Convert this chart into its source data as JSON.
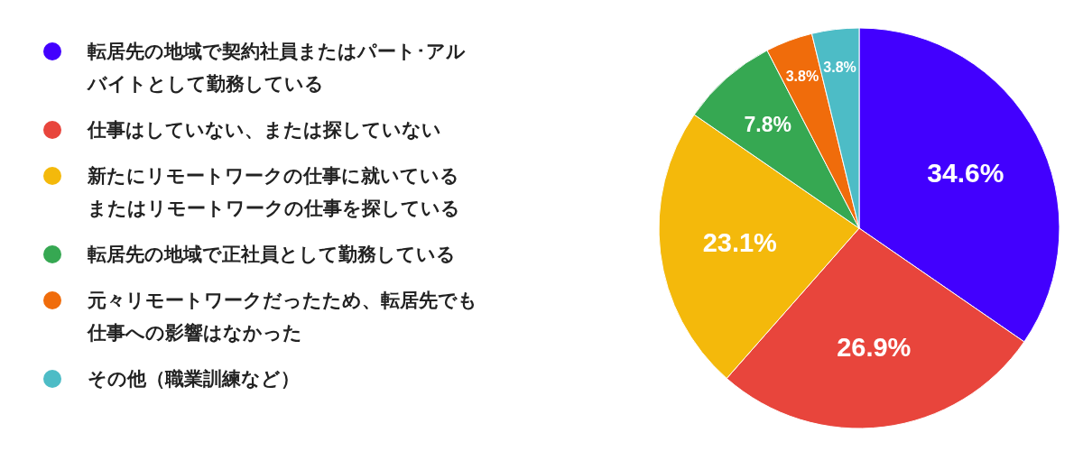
{
  "chart_data": {
    "type": "pie",
    "categories": [
      "転居先の地域で契約社員またはパート･アルバイトとして勤務している",
      "仕事はしていない、または探していない",
      "新たにリモートワークの仕事に就いているまたはリモートワークの仕事を探している",
      "転居先の地域で正社員として勤務している",
      "元々リモートワークだったため、転居先でも仕事への影響はなかった",
      "その他（職業訓練など）"
    ],
    "values": [
      34.6,
      26.9,
      23.1,
      7.8,
      3.8,
      3.8
    ],
    "colors": [
      "#4200fe",
      "#e8453c",
      "#f4b90b",
      "#36a852",
      "#f06c0b",
      "#4dbcc6"
    ],
    "value_labels": [
      "34.6%",
      "26.9%",
      "23.1%",
      "7.8%",
      "3.8%",
      "3.8%"
    ],
    "legend": "left"
  }
}
